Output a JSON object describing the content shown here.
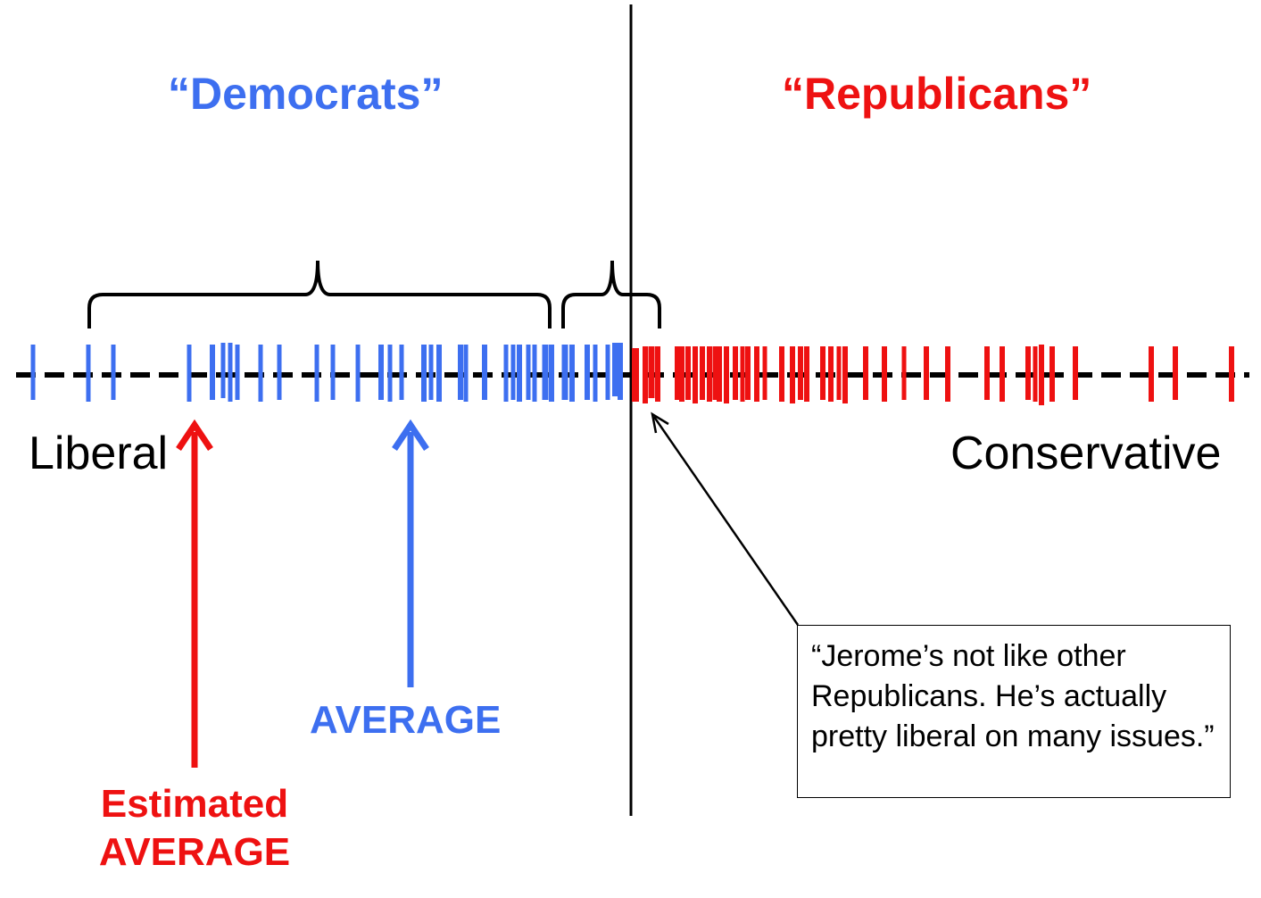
{
  "headers": {
    "democrats": "“Democrats”",
    "republicans": "“Republicans”"
  },
  "axis": {
    "left_label": "Liberal",
    "right_label": "Conservative"
  },
  "arrows": {
    "average_label": "AVERAGE",
    "estimated_label_line1": "Estimated",
    "estimated_label_line2": "AVERAGE"
  },
  "quote": {
    "text": "“Jerome’s not like other Republicans. He’s actually pretty liberal on many issues.”"
  },
  "colors": {
    "democrat": "#3d6ff0",
    "republican": "#ee1111",
    "axis": "#000000"
  }
}
